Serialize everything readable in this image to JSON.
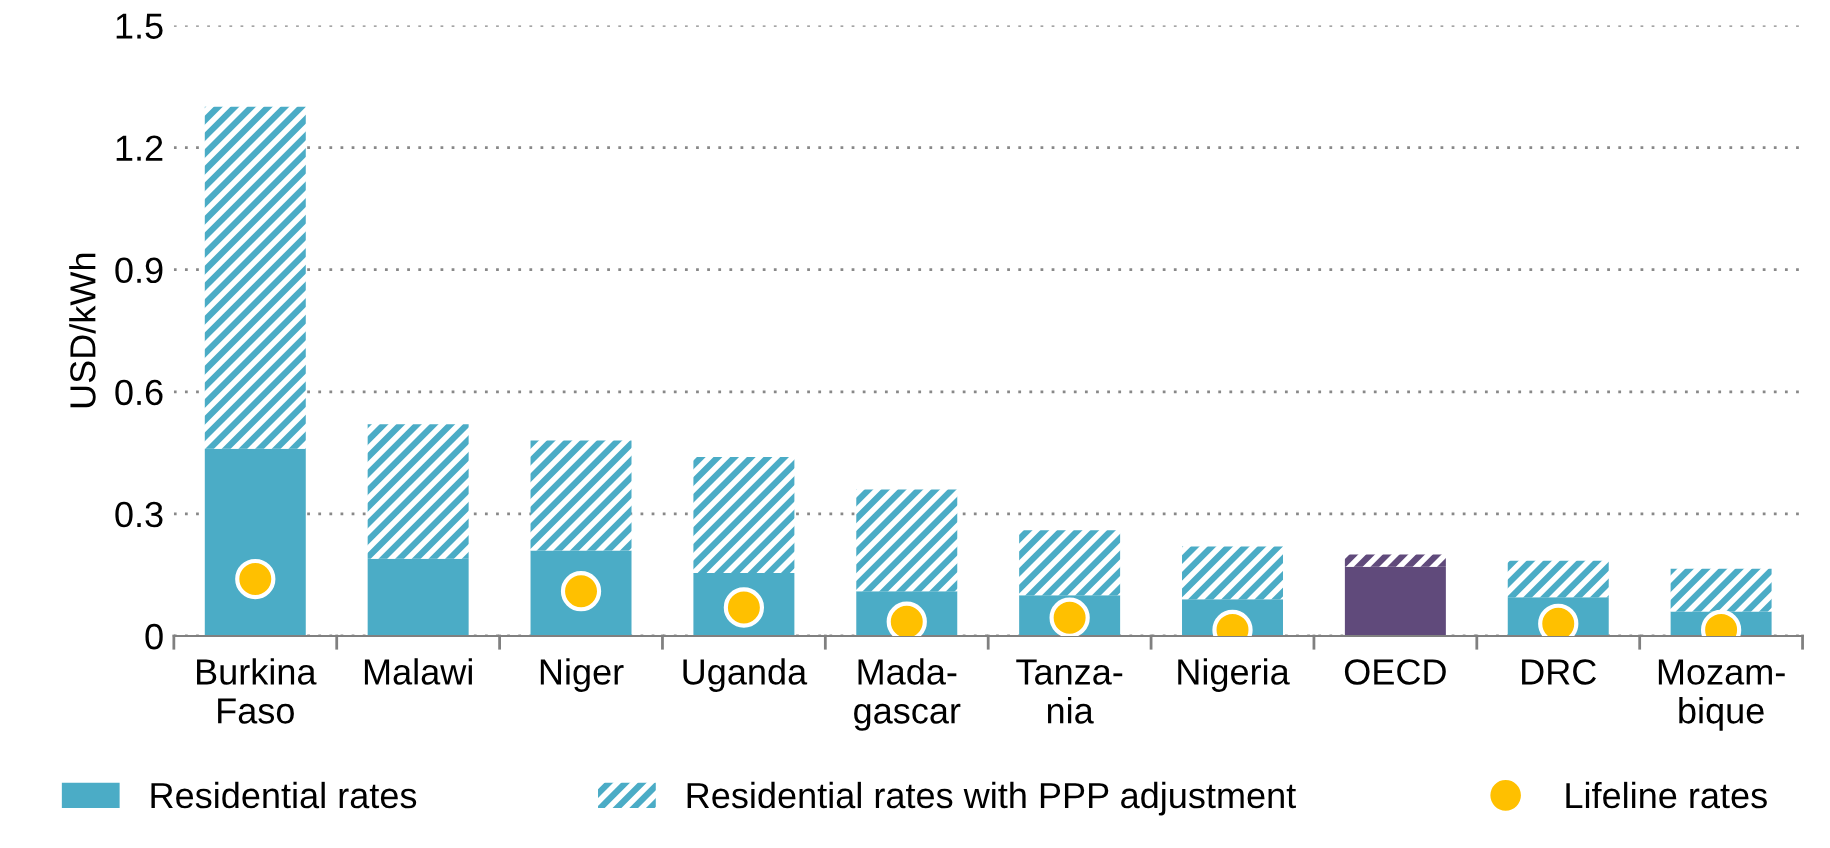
{
  "chart_data": {
    "type": "bar",
    "stacked": true,
    "ylabel": "USD/kWh",
    "categories": [
      "Burkina\nFaso",
      "Malawi",
      "Niger",
      "Uganda",
      "Mada-\ngascar",
      "Tanza-\nnia",
      "Nigeria",
      "OECD",
      "DRC",
      "Mozam-\nbique"
    ],
    "series": [
      {
        "name": "Residential rates",
        "color": "#4bacc6",
        "colors": [
          "#4bacc6",
          "#4bacc6",
          "#4bacc6",
          "#4bacc6",
          "#4bacc6",
          "#4bacc6",
          "#4bacc6",
          "#604a7b",
          "#4bacc6",
          "#4bacc6"
        ],
        "values": [
          0.46,
          0.19,
          0.21,
          0.155,
          0.11,
          0.1,
          0.09,
          0.17,
          0.095,
          0.06
        ]
      },
      {
        "name": "Residential rates with PPP adjustment",
        "color": "#4bacc6",
        "colors": [
          "#4bacc6",
          "#4bacc6",
          "#4bacc6",
          "#4bacc6",
          "#4bacc6",
          "#4bacc6",
          "#4bacc6",
          "#604a7b",
          "#4bacc6",
          "#4bacc6"
        ],
        "values": [
          0.84,
          0.33,
          0.27,
          0.285,
          0.25,
          0.16,
          0.13,
          0.03,
          0.09,
          0.105
        ]
      },
      {
        "name": "Lifeline rates",
        "type": "scatter",
        "color": "#ffc000",
        "marker": "circle",
        "values": [
          0.14,
          null,
          0.11,
          0.07,
          0.035,
          0.045,
          0.015,
          null,
          0.03,
          0.015
        ]
      }
    ],
    "ylim": [
      0,
      1.5
    ],
    "yticks": [
      0,
      0.3,
      0.6,
      0.9,
      1.2,
      1.5
    ],
    "grid": "y",
    "legend": "bottom"
  }
}
